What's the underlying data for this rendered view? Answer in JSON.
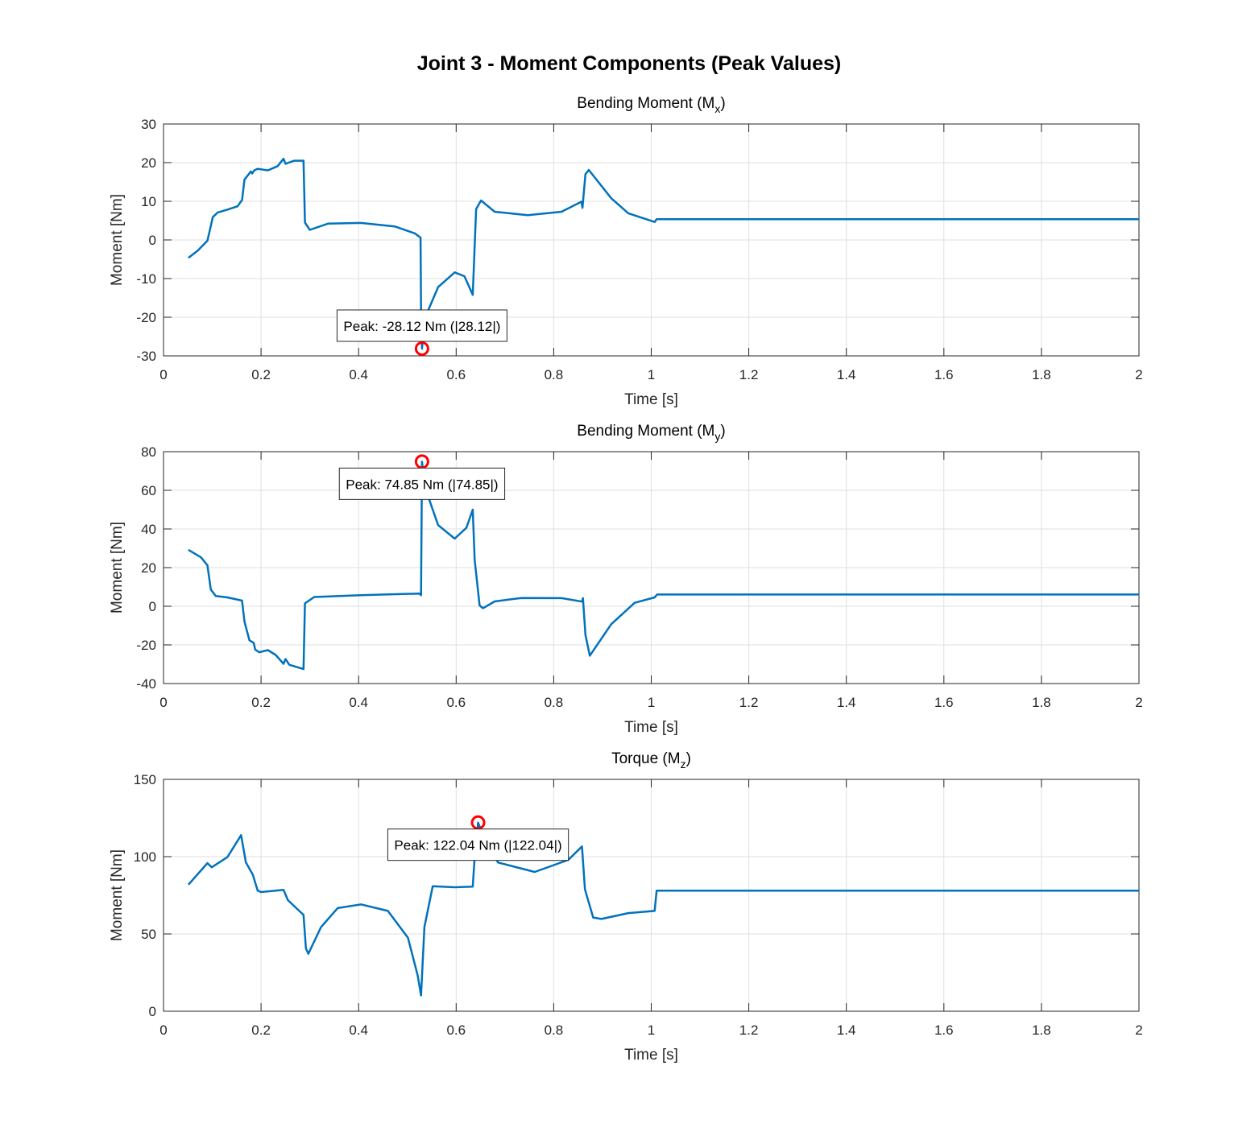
{
  "figure_title": "Joint 3 - Moment Components (Peak Values)",
  "chart_data": [
    {
      "type": "line",
      "title": {
        "prefix": "Bending Moment (M",
        "sub": "x",
        "suffix": ")"
      },
      "xlabel": "Time [s]",
      "ylabel": "Moment [Nm]",
      "xlim": [
        0,
        2
      ],
      "ylim": [
        -30,
        30
      ],
      "xticks": [
        0,
        0.2,
        0.4,
        0.6,
        0.8,
        1,
        1.2,
        1.4,
        1.6,
        1.8,
        2
      ],
      "yticks": [
        -30,
        -20,
        -10,
        0,
        10,
        20,
        30
      ],
      "grid": true,
      "color": "#0072bd",
      "peak": {
        "t": 0.53,
        "value": -28.12,
        "label": "Peak: -28.12 Nm (|28.12|)",
        "label_position": "above"
      },
      "x": [
        0.051,
        0.07,
        0.09,
        0.101,
        0.111,
        0.13,
        0.152,
        0.159,
        0.161,
        0.166,
        0.179,
        0.182,
        0.186,
        0.193,
        0.214,
        0.234,
        0.246,
        0.25,
        0.268,
        0.287,
        0.29,
        0.3,
        0.337,
        0.405,
        0.474,
        0.515,
        0.527,
        0.528,
        0.53,
        0.534,
        0.542,
        0.563,
        0.597,
        0.617,
        0.634,
        0.641,
        0.651,
        0.679,
        0.747,
        0.816,
        0.857,
        0.859,
        0.865,
        0.872,
        0.918,
        0.953,
        1.007,
        1.011,
        2.0
      ],
      "y": [
        -4.65,
        -2.8,
        -0.2,
        5.9,
        7.1,
        7.8,
        8.7,
        10.0,
        10.3,
        15.6,
        17.7,
        17.2,
        18.0,
        18.4,
        18.0,
        19.1,
        21.0,
        19.7,
        20.5,
        20.5,
        4.5,
        2.6,
        4.2,
        4.4,
        3.5,
        1.7,
        0.6,
        -17.7,
        -28.12,
        -22.0,
        -18.4,
        -12.2,
        -8.4,
        -9.4,
        -14.2,
        8.0,
        10.2,
        7.3,
        6.4,
        7.3,
        9.9,
        8.3,
        17.0,
        18.1,
        10.8,
        6.9,
        4.65,
        5.35,
        5.35
      ]
    },
    {
      "type": "line",
      "title": {
        "prefix": "Bending Moment (M",
        "sub": "y",
        "suffix": ")"
      },
      "xlabel": "Time [s]",
      "ylabel": "Moment [Nm]",
      "xlim": [
        0,
        2
      ],
      "ylim": [
        -40,
        80
      ],
      "xticks": [
        0,
        0.2,
        0.4,
        0.6,
        0.8,
        1,
        1.2,
        1.4,
        1.6,
        1.8,
        2
      ],
      "yticks": [
        -40,
        -20,
        0,
        20,
        40,
        60,
        80
      ],
      "grid": true,
      "color": "#0072bd",
      "peak": {
        "t": 0.53,
        "value": 74.85,
        "label": "Peak: 74.85 Nm (|74.85|)",
        "label_position": "below"
      },
      "x": [
        0.051,
        0.077,
        0.09,
        0.097,
        0.107,
        0.131,
        0.161,
        0.166,
        0.176,
        0.185,
        0.188,
        0.196,
        0.214,
        0.23,
        0.246,
        0.25,
        0.258,
        0.287,
        0.29,
        0.309,
        0.405,
        0.525,
        0.528,
        0.53,
        0.534,
        0.542,
        0.563,
        0.597,
        0.621,
        0.634,
        0.638,
        0.648,
        0.655,
        0.679,
        0.734,
        0.816,
        0.858,
        0.86,
        0.865,
        0.874,
        0.918,
        0.966,
        1.007,
        1.012,
        2.0
      ],
      "y": [
        29.2,
        25.3,
        21.2,
        8.7,
        5.3,
        4.6,
        2.9,
        -7.9,
        -17.6,
        -19.0,
        -22.4,
        -23.8,
        -22.7,
        -25.2,
        -29.8,
        -27.3,
        -30.3,
        -32.5,
        1.5,
        4.8,
        5.7,
        6.6,
        5.7,
        74.85,
        66.0,
        57.2,
        42.0,
        35.0,
        40.6,
        50.0,
        24.0,
        0.4,
        -1.0,
        2.5,
        4.3,
        4.2,
        2.4,
        4.2,
        -14.8,
        -25.6,
        -9.3,
        1.8,
        4.6,
        6.1,
        6.1
      ]
    },
    {
      "type": "line",
      "title": {
        "prefix": "Torque (M",
        "sub": "z",
        "suffix": ")"
      },
      "xlabel": "Time [s]",
      "ylabel": "Moment [Nm]",
      "xlim": [
        0,
        2
      ],
      "ylim": [
        0,
        150
      ],
      "xticks": [
        0,
        0.2,
        0.4,
        0.6,
        0.8,
        1,
        1.2,
        1.4,
        1.6,
        1.8,
        2
      ],
      "yticks": [
        0,
        50,
        100,
        150
      ],
      "grid": true,
      "color": "#0072bd",
      "peak": {
        "t": 0.645,
        "value": 122.04,
        "label": "Peak: 122.04 Nm (|122.04|)",
        "label_position": "below"
      },
      "x": [
        0.051,
        0.09,
        0.099,
        0.131,
        0.159,
        0.169,
        0.183,
        0.193,
        0.2,
        0.246,
        0.255,
        0.287,
        0.292,
        0.297,
        0.323,
        0.357,
        0.405,
        0.46,
        0.501,
        0.521,
        0.528,
        0.535,
        0.552,
        0.597,
        0.634,
        0.638,
        0.645,
        0.665,
        0.686,
        0.761,
        0.83,
        0.858,
        0.864,
        0.881,
        0.898,
        0.953,
        1.007,
        1.011,
        2.0
      ],
      "y": [
        81.9,
        95.8,
        93.1,
        99.7,
        113.9,
        96.2,
        88.4,
        78.0,
        77.1,
        78.5,
        71.9,
        62.3,
        40.6,
        37.2,
        54.5,
        66.7,
        69.1,
        64.9,
        47.6,
        23.3,
        10.2,
        54.5,
        80.9,
        80.2,
        80.6,
        99.7,
        122.04,
        106.6,
        96.2,
        90.1,
        97.9,
        106.6,
        78.8,
        60.6,
        59.7,
        63.5,
        64.9,
        78.0,
        78.0
      ]
    }
  ]
}
